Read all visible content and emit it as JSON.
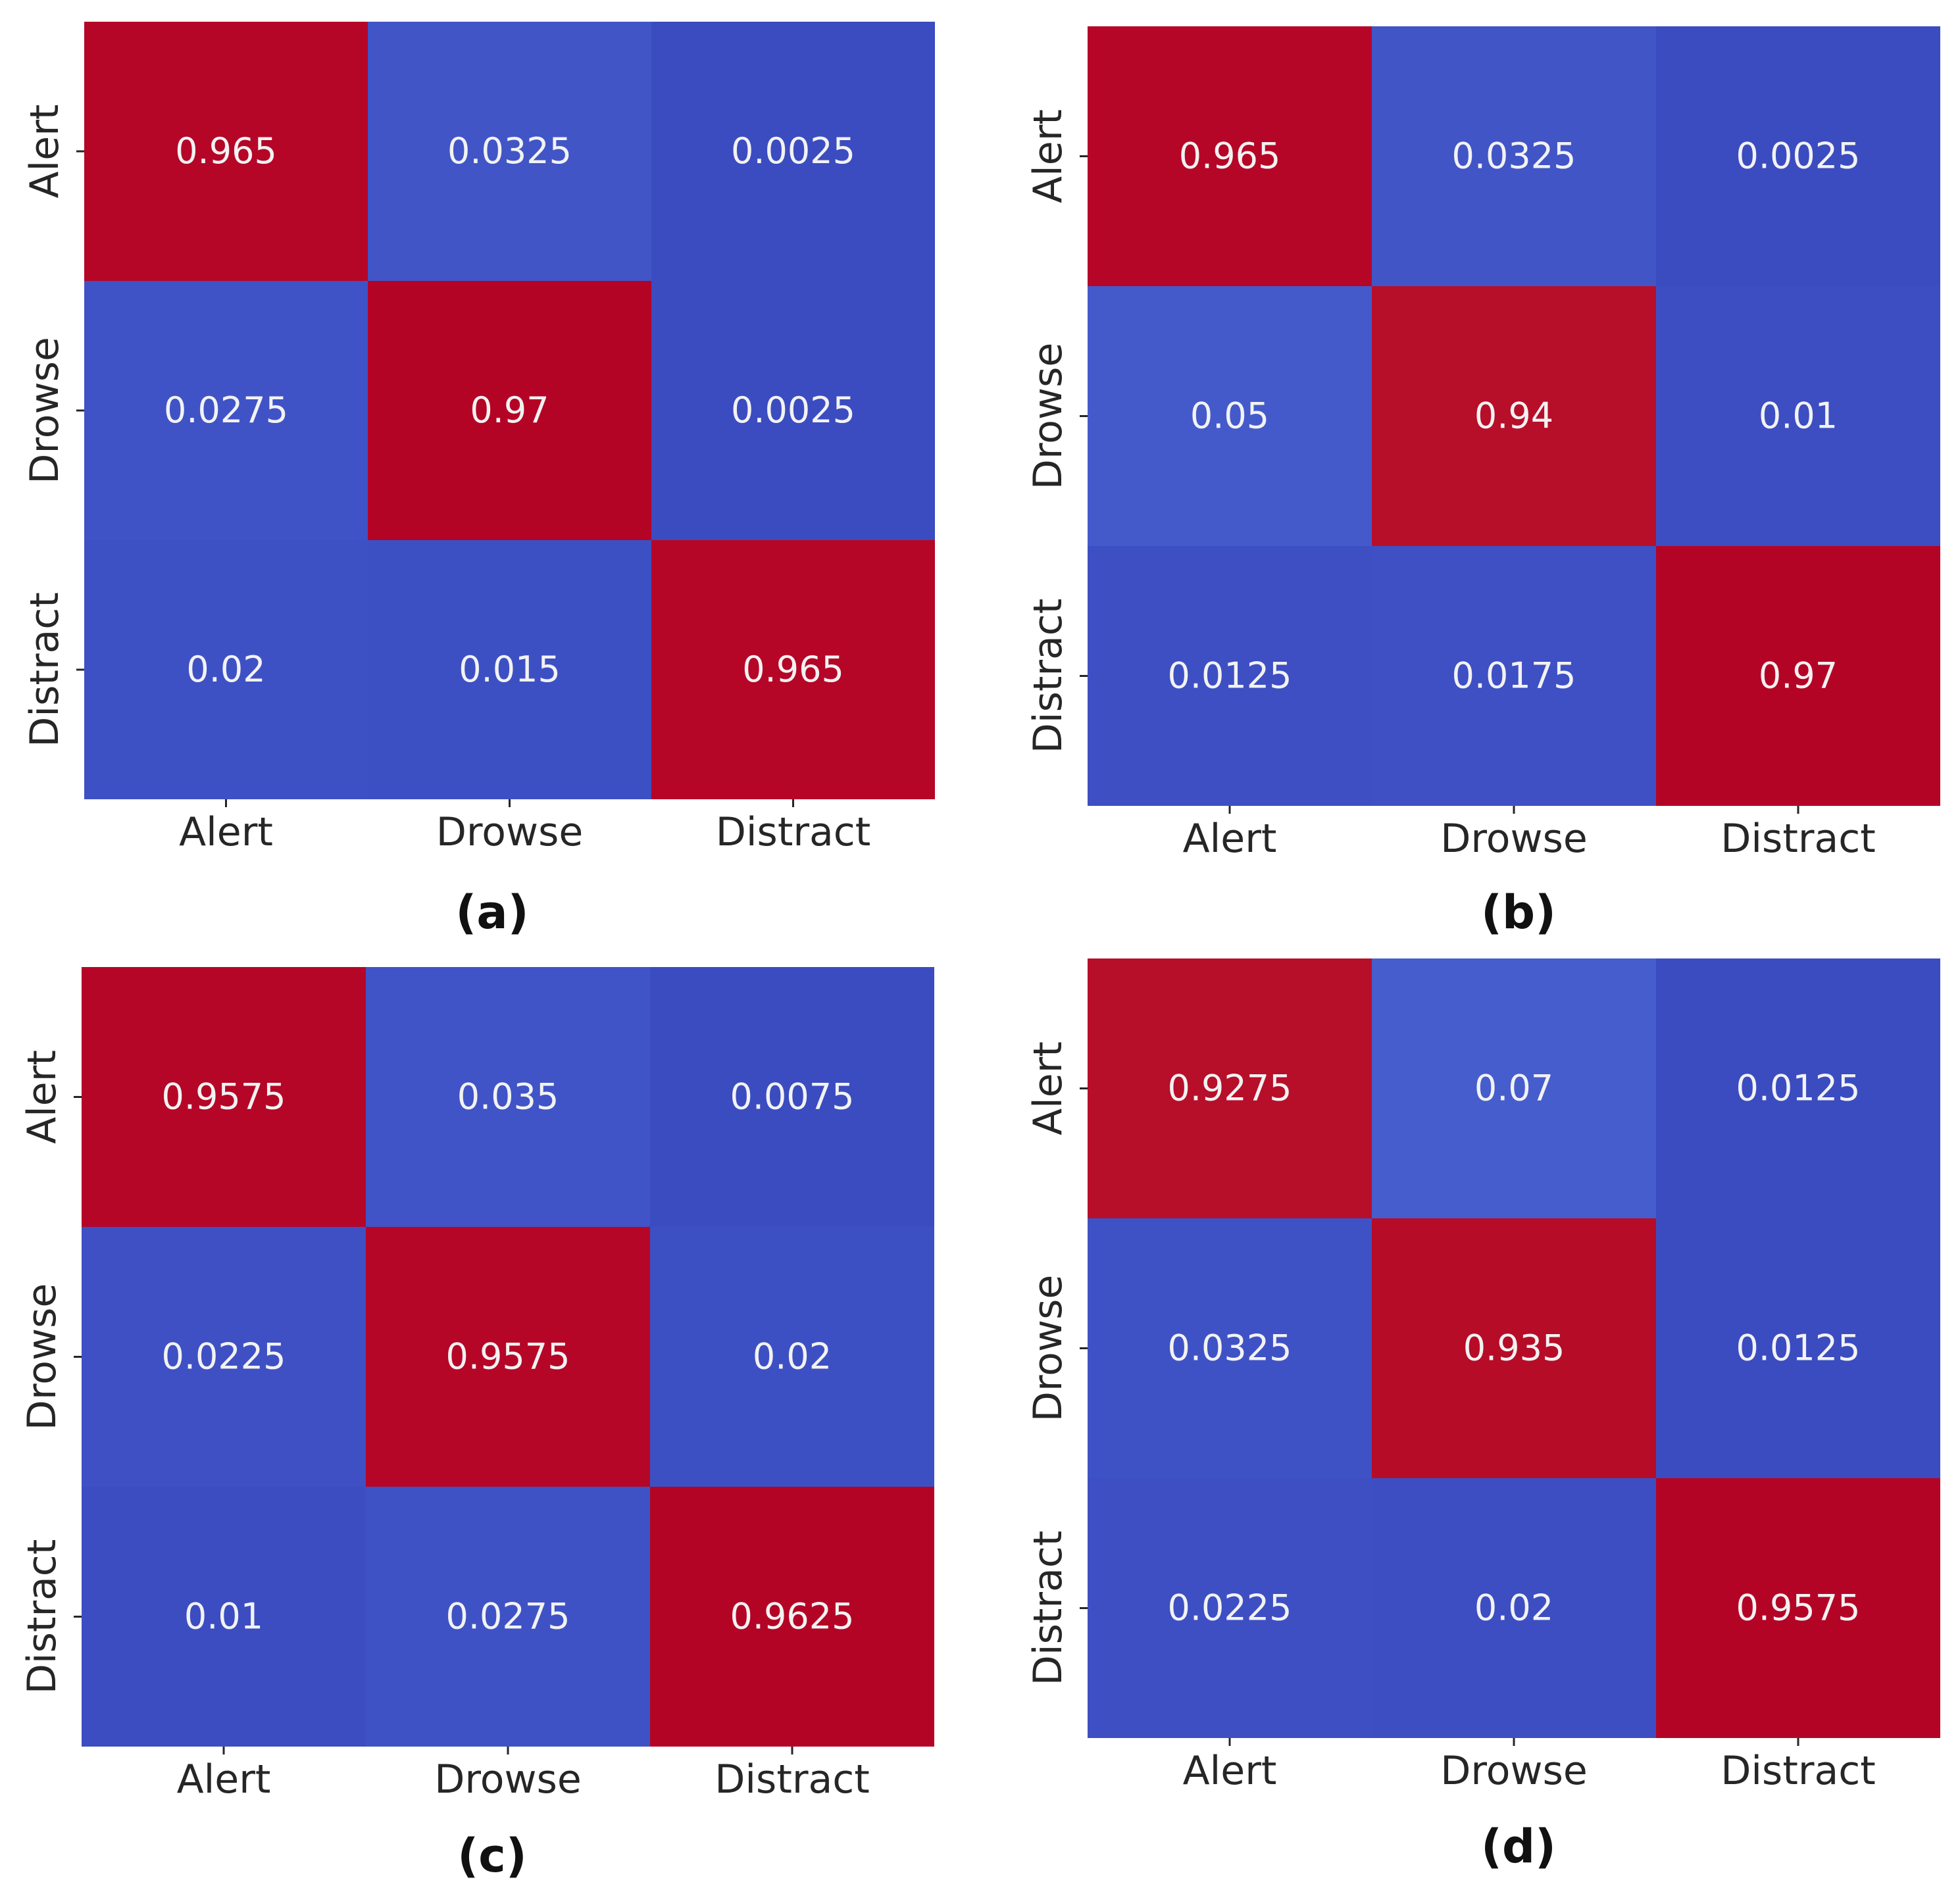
{
  "colors": {
    "low": "#3b4cc0",
    "high": "#b40426",
    "cell_text": "#f2f2f2",
    "axis_text": "#262626"
  },
  "chart_data": [
    {
      "type": "heatmap",
      "panel_label": "(a)",
      "categories_x": [
        "Alert",
        "Drowse",
        "Distract"
      ],
      "categories_y": [
        "Alert",
        "Drowse",
        "Distract"
      ],
      "values": [
        [
          0.965,
          0.0325,
          0.0025
        ],
        [
          0.0275,
          0.97,
          0.0025
        ],
        [
          0.02,
          0.015,
          0.965
        ]
      ],
      "value_labels": [
        [
          "0.965",
          "0.0325",
          "0.0025"
        ],
        [
          "0.0275",
          "0.97",
          "0.0025"
        ],
        [
          "0.02",
          "0.015",
          "0.965"
        ]
      ]
    },
    {
      "type": "heatmap",
      "panel_label": "(b)",
      "categories_x": [
        "Alert",
        "Drowse",
        "Distract"
      ],
      "categories_y": [
        "Alert",
        "Drowse",
        "Distract"
      ],
      "values": [
        [
          0.965,
          0.0325,
          0.0025
        ],
        [
          0.05,
          0.94,
          0.01
        ],
        [
          0.0125,
          0.0175,
          0.97
        ]
      ],
      "value_labels": [
        [
          "0.965",
          "0.0325",
          "0.0025"
        ],
        [
          "0.05",
          "0.94",
          "0.01"
        ],
        [
          "0.0125",
          "0.0175",
          "0.97"
        ]
      ]
    },
    {
      "type": "heatmap",
      "panel_label": "(c)",
      "categories_x": [
        "Alert",
        "Drowse",
        "Distract"
      ],
      "categories_y": [
        "Alert",
        "Drowse",
        "Distract"
      ],
      "values": [
        [
          0.9575,
          0.035,
          0.0075
        ],
        [
          0.0225,
          0.9575,
          0.02
        ],
        [
          0.01,
          0.0275,
          0.9625
        ]
      ],
      "value_labels": [
        [
          "0.9575",
          "0.035",
          "0.0075"
        ],
        [
          "0.0225",
          "0.9575",
          "0.02"
        ],
        [
          "0.01",
          "0.0275",
          "0.9625"
        ]
      ]
    },
    {
      "type": "heatmap",
      "panel_label": "(d)",
      "categories_x": [
        "Alert",
        "Drowse",
        "Distract"
      ],
      "categories_y": [
        "Alert",
        "Drowse",
        "Distract"
      ],
      "values": [
        [
          0.9275,
          0.07,
          0.0125
        ],
        [
          0.0325,
          0.935,
          0.0125
        ],
        [
          0.0225,
          0.02,
          0.9575
        ]
      ],
      "value_labels": [
        [
          "0.9275",
          "0.07",
          "0.0125"
        ],
        [
          "0.0325",
          "0.935",
          "0.0125"
        ],
        [
          "0.0225",
          "0.02",
          "0.9575"
        ]
      ]
    }
  ]
}
